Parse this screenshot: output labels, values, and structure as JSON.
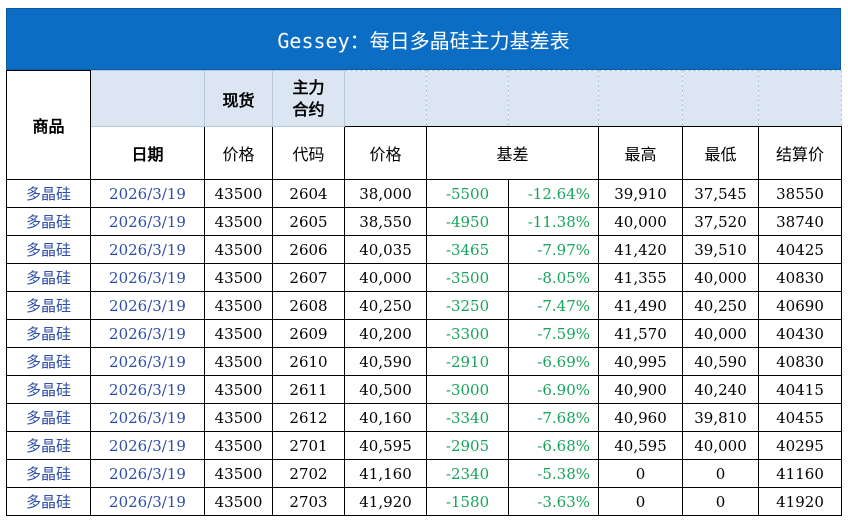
{
  "title": "Gessey：每日多晶硅主力基差表",
  "header": {
    "product": "商品",
    "spot": "现货",
    "main_contract": "主力\n合约",
    "date": "日期",
    "price": "价格",
    "code": "代码",
    "price2": "价格",
    "basis": "基差",
    "high": "最高",
    "low": "最低",
    "settle": "结算价"
  },
  "rows": [
    {
      "name": "多晶硅",
      "date": "2026/3/19",
      "spot": "43500",
      "code": "2604",
      "price": "38,000",
      "basis": "-5500",
      "pct": "-12.64%",
      "high": "39,910",
      "low": "37,545",
      "settle": "38550"
    },
    {
      "name": "多晶硅",
      "date": "2026/3/19",
      "spot": "43500",
      "code": "2605",
      "price": "38,550",
      "basis": "-4950",
      "pct": "-11.38%",
      "high": "40,000",
      "low": "37,520",
      "settle": "38740"
    },
    {
      "name": "多晶硅",
      "date": "2026/3/19",
      "spot": "43500",
      "code": "2606",
      "price": "40,035",
      "basis": "-3465",
      "pct": "-7.97%",
      "high": "41,420",
      "low": "39,510",
      "settle": "40425"
    },
    {
      "name": "多晶硅",
      "date": "2026/3/19",
      "spot": "43500",
      "code": "2607",
      "price": "40,000",
      "basis": "-3500",
      "pct": "-8.05%",
      "high": "41,355",
      "low": "40,000",
      "settle": "40830"
    },
    {
      "name": "多晶硅",
      "date": "2026/3/19",
      "spot": "43500",
      "code": "2608",
      "price": "40,250",
      "basis": "-3250",
      "pct": "-7.47%",
      "high": "41,490",
      "low": "40,250",
      "settle": "40690"
    },
    {
      "name": "多晶硅",
      "date": "2026/3/19",
      "spot": "43500",
      "code": "2609",
      "price": "40,200",
      "basis": "-3300",
      "pct": "-7.59%",
      "high": "41,570",
      "low": "40,000",
      "settle": "40430"
    },
    {
      "name": "多晶硅",
      "date": "2026/3/19",
      "spot": "43500",
      "code": "2610",
      "price": "40,590",
      "basis": "-2910",
      "pct": "-6.69%",
      "high": "40,995",
      "low": "40,590",
      "settle": "40830"
    },
    {
      "name": "多晶硅",
      "date": "2026/3/19",
      "spot": "43500",
      "code": "2611",
      "price": "40,500",
      "basis": "-3000",
      "pct": "-6.90%",
      "high": "40,900",
      "low": "40,240",
      "settle": "40415"
    },
    {
      "name": "多晶硅",
      "date": "2026/3/19",
      "spot": "43500",
      "code": "2612",
      "price": "40,160",
      "basis": "-3340",
      "pct": "-7.68%",
      "high": "40,960",
      "low": "39,810",
      "settle": "40455"
    },
    {
      "name": "多晶硅",
      "date": "2026/3/19",
      "spot": "43500",
      "code": "2701",
      "price": "40,595",
      "basis": "-2905",
      "pct": "-6.68%",
      "high": "40,595",
      "low": "40,000",
      "settle": "40295"
    },
    {
      "name": "多晶硅",
      "date": "2026/3/19",
      "spot": "43500",
      "code": "2702",
      "price": "41,160",
      "basis": "-2340",
      "pct": "-5.38%",
      "high": "0",
      "low": "0",
      "settle": "41160"
    },
    {
      "name": "多晶硅",
      "date": "2026/3/19",
      "spot": "43500",
      "code": "2703",
      "price": "41,920",
      "basis": "-1580",
      "pct": "-3.63%",
      "high": "0",
      "low": "0",
      "settle": "41920"
    }
  ],
  "colors": {
    "title_bg": "#0b6dc4",
    "name_text": "#2d4ea8",
    "basis_text": "#19a35a",
    "header_fill": "#dce6f2"
  }
}
